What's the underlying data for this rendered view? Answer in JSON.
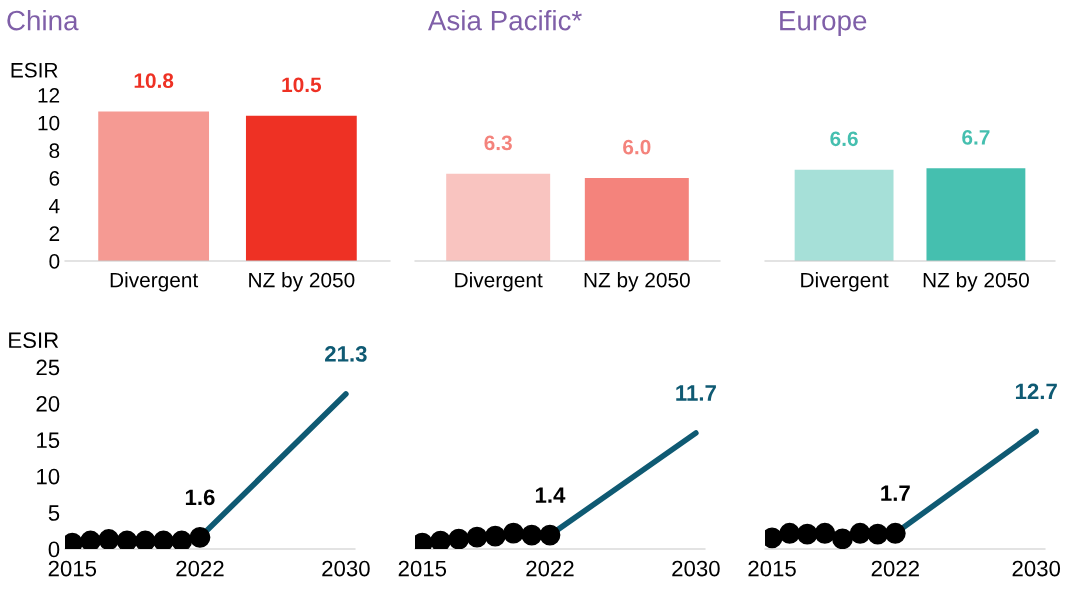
{
  "chart_data": [
    {
      "type": "bar",
      "title": "China",
      "ylabel": "ESIR",
      "categories": [
        "Divergent",
        "NZ by 2050"
      ],
      "ylim": [
        0,
        12
      ],
      "yticks": [
        0,
        2,
        4,
        6,
        8,
        10,
        12
      ],
      "data_labels": true,
      "series": [
        {
          "color": "#ee3124",
          "colors": [
            "#f59a93",
            "#ee3124"
          ],
          "values": [
            10.8,
            10.5
          ],
          "value_labels": [
            "10.8",
            "10.5"
          ]
        }
      ]
    },
    {
      "type": "bar",
      "title": "Asia Pacific*",
      "categories": [
        "Divergent",
        "NZ by 2050"
      ],
      "ylim": [
        0,
        12
      ],
      "tick_labels": "x",
      "data_labels": true,
      "series": [
        {
          "color": "#f4837c",
          "colors": [
            "#f9c4c0",
            "#f4837c"
          ],
          "values": [
            6.3,
            6.0
          ],
          "value_labels": [
            "6.3",
            "6.0"
          ]
        }
      ]
    },
    {
      "type": "bar",
      "title": "Europe",
      "categories": [
        "Divergent",
        "NZ by 2050"
      ],
      "ylim": [
        0,
        12
      ],
      "tick_labels": "x",
      "data_labels": true,
      "series": [
        {
          "color": "#45bfaf",
          "colors": [
            "#a6e0d8",
            "#45bfaf"
          ],
          "values": [
            6.6,
            6.7
          ],
          "value_labels": [
            "6.6",
            "6.7"
          ]
        }
      ]
    },
    {
      "type": "line",
      "ylabel": "ESIR",
      "xlim": [
        2014.6,
        2030.5
      ],
      "xticks": [
        2015,
        2022,
        2030
      ],
      "ylim": [
        0,
        25
      ],
      "yticks": [
        0,
        5,
        10,
        15,
        20,
        25
      ],
      "series": [
        {
          "type": "scatter",
          "marker": "circle",
          "color": "#000000",
          "x": [
            2015,
            2016,
            2017,
            2018,
            2019,
            2020,
            2021,
            2022
          ],
          "values": [
            0.8,
            1.1,
            1.3,
            1.1,
            1.1,
            1.1,
            1.1,
            1.6
          ],
          "value_labels": [
            null,
            null,
            null,
            null,
            null,
            null,
            null,
            "1.6"
          ]
        },
        {
          "type": "line",
          "color": "#0f5a73",
          "x": [
            2022,
            2030
          ],
          "values": [
            1.6,
            21.3
          ],
          "value_labels": [
            null,
            "21.3"
          ]
        }
      ]
    },
    {
      "type": "line",
      "xlim": [
        2014.6,
        2030.5
      ],
      "xticks": [
        2015,
        2022,
        2030
      ],
      "tick_labels": "x",
      "series": [
        {
          "type": "scatter",
          "marker": "circle",
          "color": "#000000",
          "x": [
            2015,
            2016,
            2017,
            2018,
            2019,
            2020,
            2021,
            2022
          ],
          "values": [
            0.6,
            0.8,
            1.0,
            1.2,
            1.3,
            1.6,
            1.4,
            1.4
          ],
          "value_labels": [
            null,
            null,
            null,
            null,
            null,
            null,
            null,
            "1.4"
          ]
        },
        {
          "type": "line",
          "color": "#0f5a73",
          "x": [
            2022,
            2030
          ],
          "values": [
            1.4,
            11.7
          ],
          "value_labels": [
            null,
            "11.7"
          ]
        }
      ]
    },
    {
      "type": "line",
      "xlim": [
        2014.6,
        2030.5
      ],
      "xticks": [
        2015,
        2022,
        2030
      ],
      "tick_labels": "x",
      "series": [
        {
          "type": "scatter",
          "marker": "circle",
          "color": "#000000",
          "x": [
            2015,
            2016,
            2017,
            2018,
            2019,
            2020,
            2021,
            2022
          ],
          "values": [
            1.2,
            1.7,
            1.6,
            1.7,
            1.1,
            1.7,
            1.6,
            1.7
          ],
          "value_labels": [
            null,
            null,
            null,
            null,
            null,
            null,
            null,
            "1.7"
          ]
        },
        {
          "type": "line",
          "color": "#0f5a73",
          "x": [
            2022,
            2030
          ],
          "values": [
            1.7,
            12.7
          ],
          "value_labels": [
            null,
            "12.7"
          ]
        }
      ]
    }
  ]
}
